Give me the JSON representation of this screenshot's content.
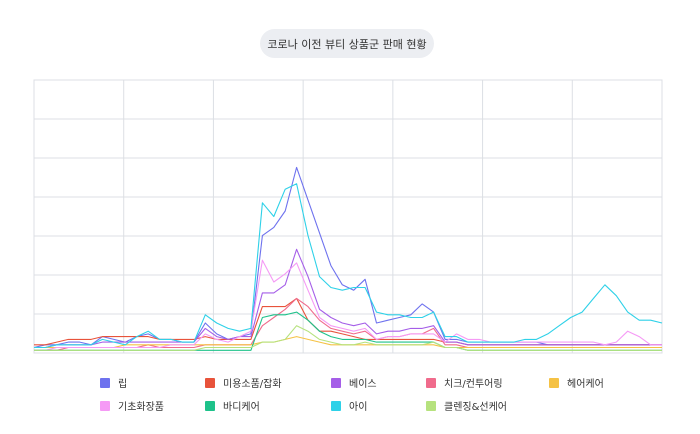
{
  "chart_data": {
    "type": "line",
    "title": "코로나 이전 뷰티 상품군 판매 현황",
    "xlabel": "",
    "ylabel": "",
    "ylim": [
      0,
      100
    ],
    "grid": true,
    "legend_position": "bottom",
    "x": [
      0,
      1,
      2,
      3,
      4,
      5,
      6,
      7,
      8,
      9,
      10,
      11,
      12,
      13,
      14,
      15,
      16,
      17,
      18,
      19,
      20,
      21,
      22,
      23,
      24,
      25,
      26,
      27,
      28,
      29,
      30,
      31,
      32,
      33,
      34,
      35,
      36,
      37,
      38,
      39,
      40,
      41,
      42,
      43,
      44,
      45,
      46,
      47,
      48,
      49,
      50,
      51,
      52,
      53,
      54,
      55
    ],
    "series": [
      {
        "name": "립",
        "color": "#6e72ee",
        "values": [
          2,
          3,
          3,
          4,
          4,
          3,
          6,
          5,
          4,
          6,
          7,
          5,
          5,
          4,
          4,
          11,
          7,
          5,
          6,
          7,
          43,
          46,
          52,
          68,
          56,
          44,
          32,
          25,
          23,
          27,
          11,
          12,
          13,
          14,
          18,
          15,
          5,
          5,
          4,
          4,
          4,
          4,
          4,
          4,
          4,
          3,
          3,
          3,
          3,
          3,
          3,
          3,
          3,
          3,
          3,
          3
        ]
      },
      {
        "name": "미용소품/잡화",
        "color": "#e8533b",
        "values": [
          3,
          3,
          4,
          5,
          5,
          5,
          6,
          6,
          6,
          6,
          6,
          5,
          5,
          5,
          5,
          6,
          5,
          5,
          5,
          5,
          17,
          17,
          17,
          20,
          12,
          8,
          8,
          7,
          6,
          5,
          5,
          5,
          5,
          5,
          5,
          5,
          4,
          4,
          3,
          3,
          3,
          3,
          3,
          3,
          3,
          3,
          3,
          3,
          3,
          3,
          3,
          3,
          3,
          3,
          3,
          3
        ]
      },
      {
        "name": "베이스",
        "color": "#a55ee8",
        "values": [
          2,
          2,
          3,
          3,
          3,
          3,
          4,
          4,
          4,
          4,
          4,
          4,
          4,
          4,
          4,
          9,
          6,
          5,
          6,
          6,
          22,
          22,
          25,
          38,
          28,
          16,
          13,
          11,
          10,
          11,
          7,
          8,
          8,
          9,
          9,
          10,
          4,
          4,
          3,
          3,
          3,
          3,
          3,
          3,
          3,
          3,
          3,
          3,
          3,
          3,
          3,
          3,
          3,
          3,
          3,
          3
        ]
      },
      {
        "name": "치크/컨투어링",
        "color": "#f06b8c",
        "values": [
          1,
          1,
          1,
          2,
          2,
          2,
          2,
          2,
          2,
          2,
          3,
          2,
          2,
          2,
          2,
          3,
          3,
          3,
          3,
          3,
          10,
          13,
          16,
          20,
          17,
          12,
          9,
          8,
          7,
          8,
          5,
          6,
          6,
          7,
          7,
          9,
          3,
          3,
          2,
          2,
          2,
          2,
          2,
          2,
          2,
          2,
          2,
          2,
          2,
          2,
          2,
          2,
          2,
          2,
          2,
          2
        ]
      },
      {
        "name": "헤어케어",
        "color": "#f5c245",
        "values": [
          2,
          2,
          2,
          2,
          2,
          2,
          2,
          2,
          3,
          3,
          3,
          3,
          3,
          3,
          3,
          3,
          3,
          3,
          3,
          3,
          4,
          4,
          5,
          6,
          5,
          4,
          3,
          3,
          3,
          3,
          3,
          3,
          3,
          3,
          3,
          3,
          2,
          2,
          2,
          2,
          2,
          2,
          2,
          2,
          2,
          2,
          2,
          2,
          2,
          2,
          2,
          2,
          2,
          2,
          2,
          2
        ]
      },
      {
        "name": "기초화장품",
        "color": "#f59af5",
        "values": [
          1,
          1,
          2,
          2,
          2,
          2,
          2,
          2,
          2,
          2,
          2,
          2,
          3,
          3,
          3,
          7,
          5,
          4,
          6,
          8,
          34,
          26,
          29,
          33,
          23,
          13,
          10,
          9,
          8,
          9,
          5,
          6,
          6,
          7,
          7,
          7,
          4,
          7,
          5,
          5,
          4,
          4,
          4,
          4,
          4,
          4,
          4,
          4,
          4,
          4,
          3,
          4,
          8,
          6,
          3,
          3
        ]
      },
      {
        "name": "바디케어",
        "color": "#1ec28a",
        "values": [
          1,
          1,
          1,
          1,
          1,
          1,
          1,
          1,
          1,
          1,
          1,
          1,
          1,
          1,
          1,
          1,
          1,
          1,
          1,
          1,
          13,
          14,
          14,
          15,
          12,
          8,
          6,
          5,
          5,
          5,
          4,
          4,
          4,
          4,
          4,
          4,
          2,
          2,
          1,
          1,
          1,
          1,
          1,
          1,
          1,
          1,
          1,
          1,
          1,
          1,
          1,
          1,
          1,
          1,
          1,
          1
        ]
      },
      {
        "name": "아이",
        "color": "#2ed1e8",
        "values": [
          2,
          2,
          3,
          3,
          3,
          3,
          5,
          4,
          3,
          6,
          8,
          5,
          5,
          4,
          4,
          14,
          11,
          9,
          8,
          9,
          55,
          50,
          60,
          62,
          43,
          28,
          24,
          23,
          24,
          24,
          15,
          14,
          14,
          13,
          13,
          15,
          6,
          6,
          4,
          4,
          4,
          4,
          4,
          5,
          5,
          7,
          10,
          13,
          15,
          20,
          25,
          21,
          15,
          12,
          12,
          11
        ]
      },
      {
        "name": "클렌징&선케어",
        "color": "#b6e27e",
        "values": [
          1,
          1,
          1,
          1,
          1,
          1,
          1,
          1,
          1,
          1,
          1,
          1,
          1,
          1,
          1,
          2,
          2,
          2,
          2,
          2,
          4,
          4,
          5,
          10,
          8,
          5,
          4,
          3,
          3,
          4,
          3,
          3,
          3,
          3,
          3,
          4,
          2,
          2,
          1,
          1,
          1,
          1,
          1,
          1,
          1,
          1,
          1,
          1,
          1,
          1,
          1,
          1,
          1,
          1,
          1,
          1
        ]
      }
    ]
  }
}
